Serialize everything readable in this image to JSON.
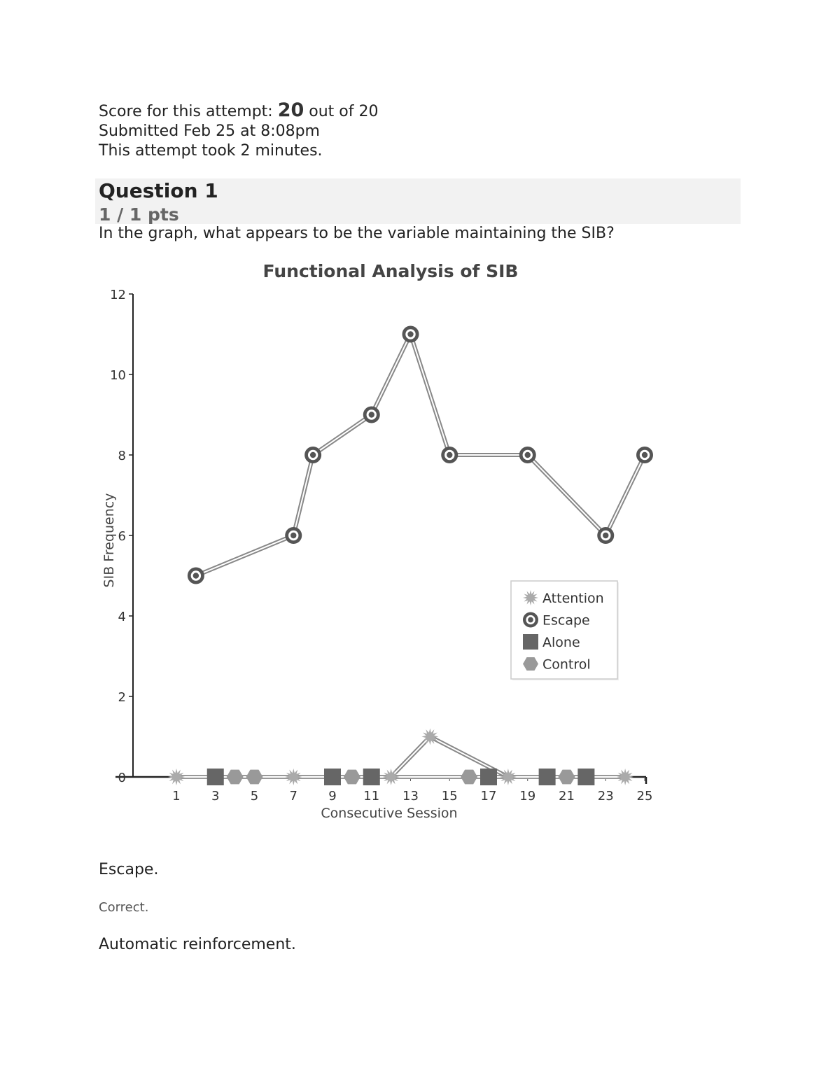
{
  "summary": {
    "score_label": "Score for this attempt:",
    "score": "20",
    "score_total": "out of 20",
    "submitted": "Submitted Feb 25 at 8:08pm",
    "duration": "This attempt took 2 minutes."
  },
  "question": {
    "title": "Question 1",
    "points": "1 / 1 pts",
    "text": "In the graph, what appears to be the variable maintaining the SIB?"
  },
  "answers": [
    {
      "text": "Escape.",
      "feedback": "Correct."
    },
    {
      "text": "Automatic reinforcement."
    }
  ],
  "chart_data": {
    "type": "line",
    "title": "Functional Analysis of SIB",
    "xlabel": "Consecutive Session",
    "ylabel": "SIB Frequency",
    "xlim": [
      0,
      25
    ],
    "ylim": [
      0,
      12
    ],
    "xticks": [
      1,
      3,
      5,
      7,
      9,
      11,
      13,
      15,
      17,
      19,
      21,
      23,
      25
    ],
    "yticks": [
      0,
      2,
      4,
      6,
      8,
      10,
      12
    ],
    "legend_position": "right",
    "series": [
      {
        "name": "Attention",
        "marker": "star",
        "color": "#aaaaaa",
        "x": [
          1,
          7,
          12,
          14,
          18,
          24
        ],
        "y": [
          0,
          0,
          0,
          1,
          0,
          0
        ]
      },
      {
        "name": "Escape",
        "marker": "ring",
        "color": "#555555",
        "x": [
          2,
          7,
          8,
          11,
          13,
          15,
          19,
          23,
          25
        ],
        "y": [
          5,
          6,
          8,
          9,
          11,
          8,
          8,
          6,
          8
        ]
      },
      {
        "name": "Alone",
        "marker": "square",
        "color": "#666666",
        "x": [
          3,
          9,
          11,
          17,
          20,
          22
        ],
        "y": [
          0,
          0,
          0,
          0,
          0,
          0
        ]
      },
      {
        "name": "Control",
        "marker": "hexagon",
        "color": "#999999",
        "x": [
          4,
          5,
          10,
          16,
          21
        ],
        "y": [
          0,
          0,
          0,
          0,
          0
        ]
      }
    ]
  }
}
